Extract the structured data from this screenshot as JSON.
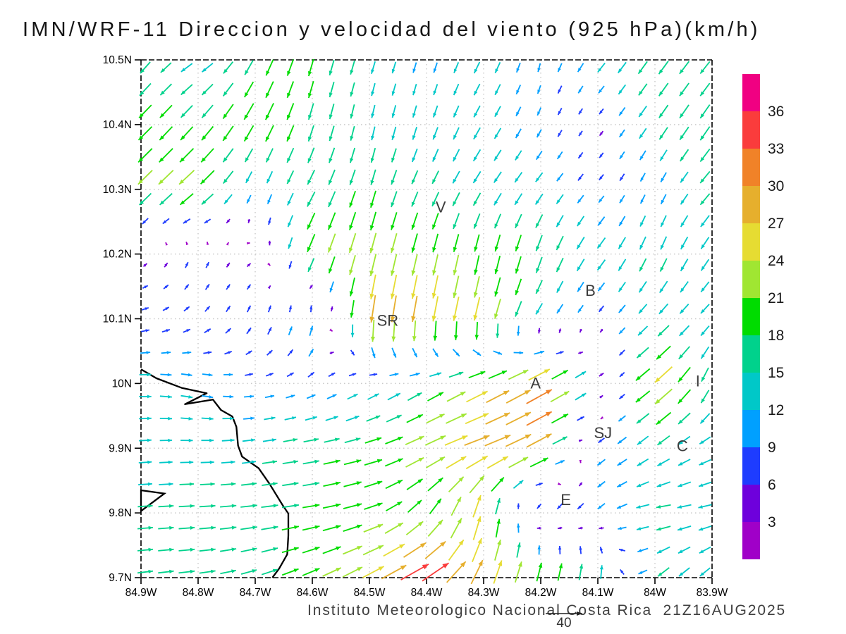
{
  "chart_data": {
    "type": "quiver",
    "title": "IMN/WRF-11 Direccion y velocidad del viento (925 hPa)(km/h)",
    "footer": "Instituto Meteorologico Nacional Costa Rica  21Z16AUG2025",
    "units": "km/h",
    "pressure_level": "925 hPa",
    "x_axis": {
      "ticks": [
        "84.9W",
        "84.8W",
        "84.7W",
        "84.6W",
        "84.5W",
        "84.4W",
        "84.3W",
        "84.2W",
        "84.1W",
        "84W",
        "83.9W"
      ],
      "values": [
        -84.9,
        -84.8,
        -84.7,
        -84.6,
        -84.5,
        -84.4,
        -84.3,
        -84.2,
        -84.1,
        -84.0,
        -83.9
      ],
      "range": [
        -84.9,
        -83.9
      ]
    },
    "y_axis": {
      "ticks": [
        "10.5N",
        "10.4N",
        "10.3N",
        "10.2N",
        "10.1N",
        "10N",
        "9.9N",
        "9.8N",
        "9.7N"
      ],
      "values": [
        10.5,
        10.4,
        10.3,
        10.2,
        10.1,
        10.0,
        9.9,
        9.8,
        9.7
      ],
      "range": [
        9.7,
        10.5
      ]
    },
    "grid": {
      "style": "dotted",
      "step_deg": 0.1
    },
    "colorbar": {
      "levels": [
        3,
        6,
        9,
        12,
        15,
        18,
        21,
        24,
        27,
        30,
        33,
        36
      ],
      "colors": [
        "#A000C8",
        "#6E00DC",
        "#1E3CFF",
        "#00A0FF",
        "#00C8C8",
        "#00D28C",
        "#00DC00",
        "#A0E632",
        "#E6DC32",
        "#E6AF2D",
        "#F08228",
        "#FA3C3C",
        "#F00082"
      ],
      "units": "km/h"
    },
    "reference_vector": {
      "value": 40,
      "label": "40"
    },
    "cities": [
      {
        "label": "V",
        "lon": -84.375,
        "lat": 10.272
      },
      {
        "label": "B",
        "lon": -84.113,
        "lat": 10.143
      },
      {
        "label": "SR",
        "lon": -84.468,
        "lat": 10.097
      },
      {
        "label": "A",
        "lon": -84.209,
        "lat": 10.0
      },
      {
        "label": "SJ",
        "lon": -84.091,
        "lat": 9.923
      },
      {
        "label": "C",
        "lon": -83.952,
        "lat": 9.903
      },
      {
        "label": "E",
        "lon": -84.156,
        "lat": 9.82
      },
      {
        "label": "I",
        "lon": -83.925,
        "lat": 10.003
      }
    ],
    "coastline_lonlat": [
      [
        -84.9,
        10.022
      ],
      [
        -84.873,
        10.008
      ],
      [
        -84.828,
        9.993
      ],
      [
        -84.785,
        9.985
      ],
      [
        -84.823,
        9.968
      ],
      [
        -84.774,
        9.975
      ],
      [
        -84.76,
        9.959
      ],
      [
        -84.74,
        9.949
      ],
      [
        -84.733,
        9.933
      ],
      [
        -84.73,
        9.904
      ],
      [
        -84.723,
        9.887
      ],
      [
        -84.694,
        9.869
      ],
      [
        -84.675,
        9.845
      ],
      [
        -84.652,
        9.812
      ],
      [
        -84.642,
        9.799
      ],
      [
        -84.642,
        9.765
      ],
      [
        -84.644,
        9.736
      ],
      [
        -84.658,
        9.714
      ],
      [
        -84.67,
        9.7
      ]
    ],
    "island_lonlat": [
      [
        -84.9,
        9.835
      ],
      [
        -84.859,
        9.83
      ],
      [
        -84.9,
        9.803
      ]
    ],
    "vector_field": {
      "units": "km/h",
      "lons": [
        -84.9,
        -84.8,
        -84.7,
        -84.6,
        -84.5,
        -84.4,
        -84.3,
        -84.2,
        -84.1,
        -84.0,
        -83.9
      ],
      "lats": [
        10.5,
        10.4,
        10.3,
        10.2,
        10.1,
        10.0,
        9.9,
        9.8,
        9.7
      ],
      "u": [
        [
          -10,
          -12,
          -8,
          -5,
          -4,
          -3,
          -6,
          -2,
          -8,
          -10,
          -10
        ],
        [
          -14,
          -12,
          -10,
          -5,
          -3,
          -4,
          -7,
          -4,
          -3,
          -9,
          -10
        ],
        [
          -15,
          -17,
          -4,
          -8,
          -5,
          -7,
          -8,
          -8,
          -5,
          -4,
          -11
        ],
        [
          3,
          2,
          4,
          -8,
          -6,
          -5,
          -4,
          -6,
          -9,
          -6,
          -8
        ],
        [
          8,
          6,
          3,
          2,
          -4,
          -5,
          -6,
          -7,
          -4,
          -10,
          -9
        ],
        [
          13,
          12,
          9,
          7,
          10,
          14,
          22,
          27,
          8,
          -22,
          -5
        ],
        [
          13,
          13,
          14,
          17,
          18,
          21,
          28,
          26,
          -8,
          -12,
          -12
        ],
        [
          16,
          17,
          18,
          18,
          20,
          12,
          5,
          -8,
          -7,
          -16,
          -14
        ],
        [
          16,
          17,
          16,
          18,
          22,
          33,
          10,
          6,
          3,
          -12,
          -10
        ]
      ],
      "v": [
        [
          -12,
          -7,
          -16,
          -18,
          -13,
          -10,
          -12,
          -9,
          -10,
          -14,
          -12
        ],
        [
          -14,
          -14,
          -18,
          -17,
          -14,
          -13,
          -12,
          -8,
          -4,
          -13,
          -15
        ],
        [
          -15,
          -15,
          -10,
          -15,
          -17,
          -14,
          -12,
          -10,
          -6,
          -9,
          -12
        ],
        [
          3,
          7,
          2,
          -20,
          -22,
          -21,
          -19,
          -18,
          -12,
          -15,
          -12
        ],
        [
          2,
          5,
          8,
          12,
          -30,
          -28,
          -25,
          -10,
          -5,
          -10,
          -9
        ],
        [
          0,
          -3,
          1,
          4,
          6,
          8,
          12,
          15,
          6,
          -18,
          -15
        ],
        [
          1,
          0,
          2,
          3,
          5,
          10,
          10,
          14,
          -6,
          -9,
          -6
        ],
        [
          1,
          1,
          2,
          3,
          6,
          15,
          26,
          -8,
          -6,
          -2,
          -3
        ],
        [
          2,
          2,
          5,
          8,
          12,
          18,
          26,
          22,
          18,
          -10,
          -9
        ]
      ]
    },
    "colors": {
      "grid": "#c9c9c9",
      "coast": "#000000",
      "city_label": "#3c3c3c",
      "axis": "#000000",
      "footer": "#3f3f3f"
    }
  }
}
